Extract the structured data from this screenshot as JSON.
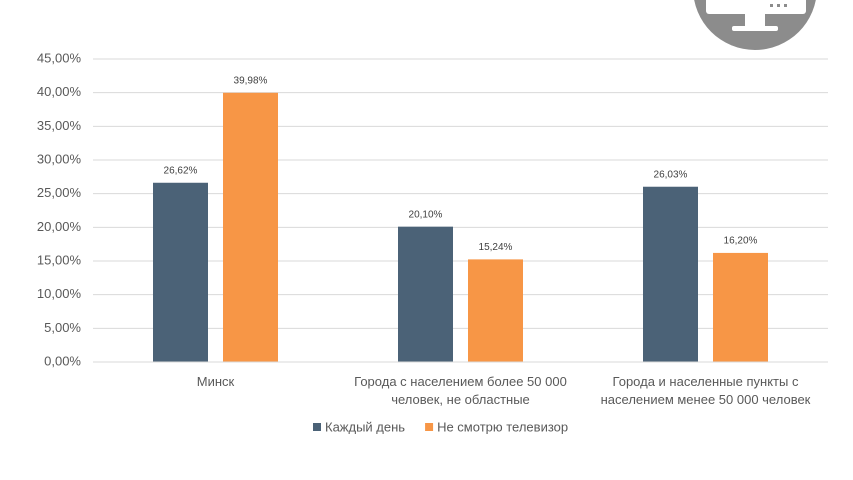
{
  "chart_data": {
    "type": "bar",
    "categories": [
      "Минск",
      "Города с населением более 50 000 человек, не областные",
      "Города и населенные пункты с населением менее 50 000 человек"
    ],
    "series": [
      {
        "name": "Каждый день",
        "color": "#4b6277",
        "values": [
          26.62,
          20.1,
          26.03
        ],
        "value_labels": [
          "26,62%",
          "20,10%",
          "26,03%"
        ]
      },
      {
        "name": "Не смотрю телевизор",
        "color": "#f79646",
        "values": [
          39.98,
          15.24,
          16.2
        ],
        "value_labels": [
          "39,98%",
          "15,24%",
          "16,20%"
        ]
      }
    ],
    "ylim": [
      0,
      45
    ],
    "yticks": [
      {
        "value": 0,
        "label": "0,00%"
      },
      {
        "value": 5,
        "label": "5,00%"
      },
      {
        "value": 10,
        "label": "10,00%"
      },
      {
        "value": 15,
        "label": "15,00%"
      },
      {
        "value": 20,
        "label": "20,00%"
      },
      {
        "value": 25,
        "label": "25,00%"
      },
      {
        "value": 30,
        "label": "30,00%"
      },
      {
        "value": 35,
        "label": "35,00%"
      },
      {
        "value": 40,
        "label": "40,00%"
      },
      {
        "value": 45,
        "label": "45,00%"
      }
    ],
    "grid": true,
    "legend": "bottom"
  }
}
